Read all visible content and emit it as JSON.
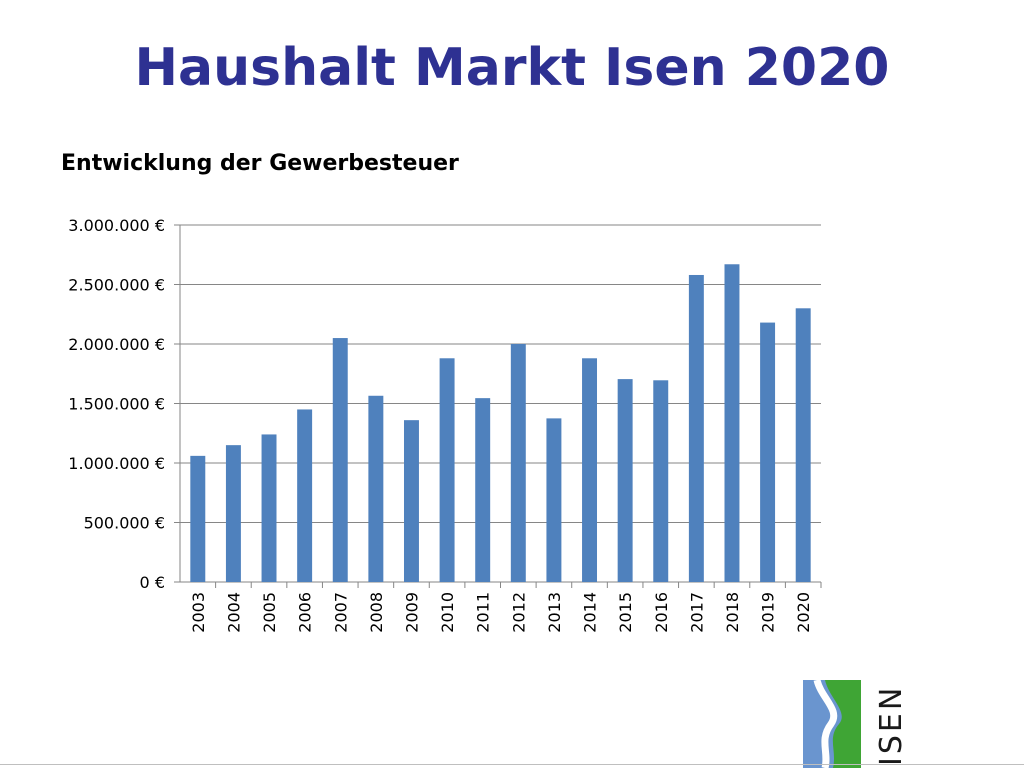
{
  "slide": {
    "title": "Haushalt Markt Isen 2020"
  },
  "chart_data": {
    "type": "bar",
    "title": "Entwicklung der Gewerbesteuer",
    "categories": [
      "2003",
      "2004",
      "2005",
      "2006",
      "2007",
      "2008",
      "2009",
      "2010",
      "2011",
      "2012",
      "2013",
      "2014",
      "2015",
      "2016",
      "2017",
      "2018",
      "2019",
      "2020"
    ],
    "values": [
      1060000,
      1150000,
      1240000,
      1450000,
      2050000,
      1565000,
      1360000,
      1880000,
      1545000,
      2000000,
      1375000,
      1880000,
      1705000,
      1695000,
      2580000,
      2670000,
      2180000,
      2300000
    ],
    "ylim": [
      0,
      3000000
    ],
    "yticks": [
      0,
      500000,
      1000000,
      1500000,
      2000000,
      2500000,
      3000000
    ],
    "ytick_labels": [
      "0 €",
      "500.000 €",
      "1.000.000 €",
      "1.500.000 €",
      "2.000.000 €",
      "2.500.000 €",
      "3.000.000 €"
    ],
    "xlabel": "",
    "ylabel": "",
    "grid": true,
    "bar_color": "#4f81bd",
    "grid_color": "#868686"
  },
  "logo": {
    "text": "ISEN",
    "colors": {
      "river": "#6a95cf",
      "land": "#3fa535"
    }
  }
}
